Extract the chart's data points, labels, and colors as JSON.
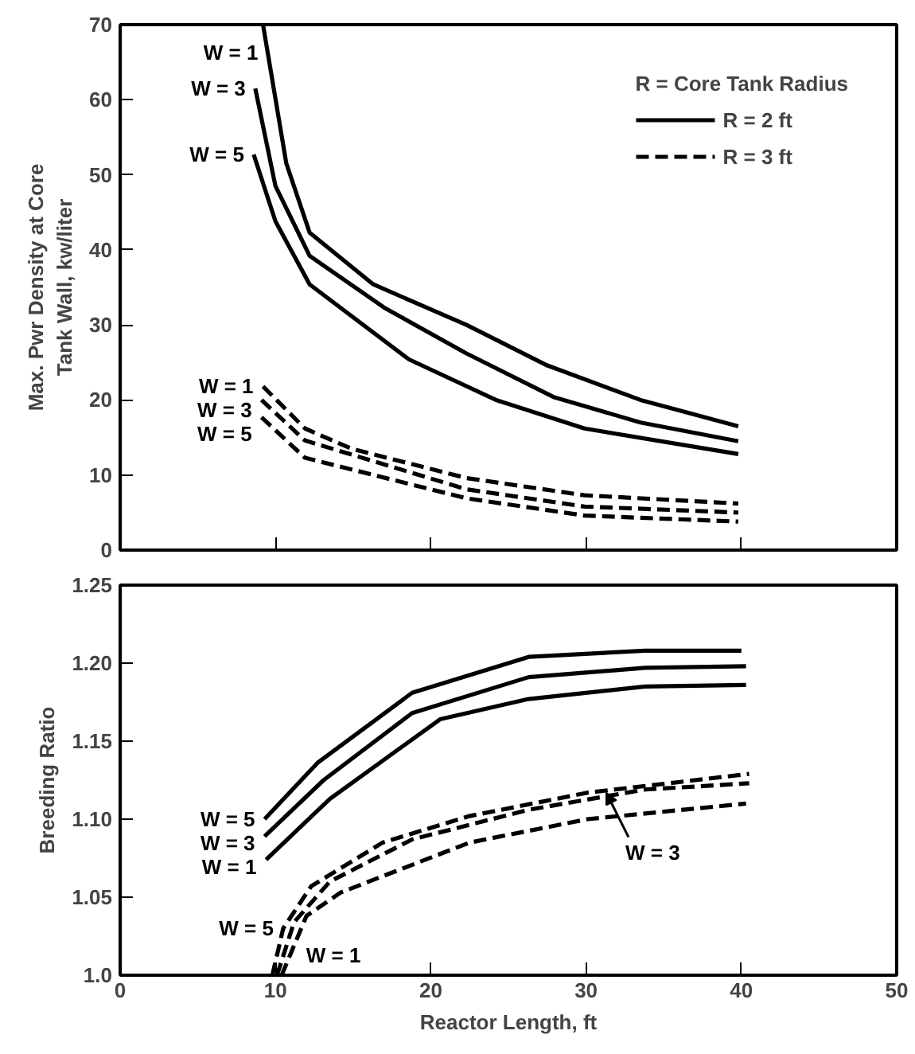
{
  "chart_data": [
    {
      "type": "line",
      "ylabel": "Max. Pwr Density at Core\nTank Wall, kw/liter",
      "legend_title": "R = Core Tank Radius",
      "legend": "top right",
      "xlim": [
        0,
        50
      ],
      "xticks": [
        0,
        10,
        20,
        30,
        40,
        50
      ],
      "ylim": [
        0,
        70
      ],
      "yticks": [
        0,
        10,
        20,
        30,
        40,
        50,
        60,
        70
      ],
      "tick_labels": "y",
      "series": [
        {
          "name": "R = 2 ft",
          "color": "#000000",
          "line_style": "solid",
          "x": [
            9.2,
            10.7,
            12.2,
            16.3,
            22.3,
            27.5,
            33.5,
            39.8
          ],
          "values": [
            70,
            51.5,
            42.3,
            35.4,
            30,
            24.6,
            20,
            16.5
          ]
        },
        {
          "color": "#000000",
          "line_style": "solid",
          "x": [
            8.7,
            10,
            12.2,
            17,
            22.3,
            27.9,
            33.5,
            39.8
          ],
          "values": [
            61.5,
            48.5,
            39.2,
            32.3,
            26.2,
            20.4,
            17,
            14.5
          ]
        },
        {
          "color": "#000000",
          "line_style": "solid",
          "x": [
            8.6,
            10,
            12.2,
            18.6,
            24.2,
            29.9,
            39.8
          ],
          "values": [
            52.7,
            43.8,
            35.4,
            25.4,
            20,
            16.2,
            12.8
          ]
        },
        {
          "name": "R = 3 ft",
          "color": "#000000",
          "line_style": "dashed",
          "x": [
            9.2,
            11.9,
            14.9,
            22.3,
            29.9,
            39.8
          ],
          "values": [
            21.8,
            16.2,
            13.5,
            9.6,
            7.3,
            6.2
          ]
        },
        {
          "color": "#000000",
          "line_style": "dashed",
          "x": [
            9.1,
            11.9,
            22.3,
            29.9,
            39.8
          ],
          "values": [
            20,
            14.6,
            8.1,
            5.8,
            5
          ]
        },
        {
          "color": "#000000",
          "line_style": "dashed",
          "x": [
            9.1,
            11.9,
            22.3,
            29.9,
            39.8
          ],
          "values": [
            17.7,
            12.3,
            6.9,
            4.6,
            3.8
          ]
        }
      ],
      "annotations": [
        {
          "text": "W = 1",
          "x": 9.5,
          "y": 66.3
        },
        {
          "text": "W = 3",
          "x": 8.7,
          "y": 61.5
        },
        {
          "text": "W = 5",
          "x": 8.6,
          "y": 52.7
        },
        {
          "text": "W = 1",
          "x": 9.2,
          "y": 21.8
        },
        {
          "text": "W = 3",
          "x": 9.1,
          "y": 20
        },
        {
          "text": "W = 5",
          "x": 9.1,
          "y": 17.7
        }
      ]
    },
    {
      "type": "line",
      "xlabel": "Reactor Length, ft",
      "ylabel": "Breeding Ratio",
      "xlim": [
        0,
        50
      ],
      "xticks": [
        0,
        10,
        20,
        30,
        40,
        50
      ],
      "ylim": [
        1.0,
        1.25
      ],
      "yticks": [
        {
          "value": 1.0,
          "label": "1.0"
        },
        {
          "value": 1.05,
          "label": "1.05"
        },
        {
          "value": 1.1,
          "label": "1.10"
        },
        {
          "value": 1.15,
          "label": "1.15"
        },
        {
          "value": 1.2,
          "label": "1.20"
        },
        {
          "value": 1.25,
          "label": "1.25"
        }
      ],
      "series": [
        {
          "color": "#000000",
          "line_style": "solid",
          "x": [
            9.3,
            12.7,
            18.8,
            26.3,
            33.8,
            40
          ],
          "values": [
            1.1,
            1.136,
            1.181,
            1.204,
            1.208,
            1.208
          ]
        },
        {
          "color": "#000000",
          "line_style": "solid",
          "x": [
            9.3,
            13.1,
            18.8,
            26.3,
            33.8,
            40.3
          ],
          "values": [
            1.089,
            1.125,
            1.168,
            1.191,
            1.197,
            1.198
          ]
        },
        {
          "color": "#000000",
          "line_style": "solid",
          "x": [
            9.4,
            13.5,
            20.6,
            26.3,
            33.8,
            40.3
          ],
          "values": [
            1.074,
            1.113,
            1.164,
            1.177,
            1.185,
            1.186
          ]
        },
        {
          "color": "#000000",
          "line_style": "dashed",
          "x": [
            9.8,
            10.5,
            12.3,
            16.9,
            22.5,
            30.1,
            40.5
          ],
          "values": [
            1.0,
            1.03,
            1.057,
            1.085,
            1.102,
            1.117,
            1.129
          ]
        },
        {
          "color": "#000000",
          "line_style": "dashed",
          "x": [
            10.1,
            11.2,
            13.5,
            18.8,
            26.3,
            33.8,
            40.5
          ],
          "values": [
            1.0,
            1.034,
            1.06,
            1.087,
            1.106,
            1.119,
            1.123
          ]
        },
        {
          "color": "#000000",
          "line_style": "dashed",
          "x": [
            10.4,
            12,
            14.2,
            22.5,
            30.1,
            40.3
          ],
          "values": [
            1.0,
            1.038,
            1.053,
            1.085,
            1.1,
            1.11
          ]
        }
      ],
      "annotations": [
        {
          "text": "W = 5",
          "x": 9.3,
          "y": 1.1
        },
        {
          "text": "W = 3",
          "x": 9.3,
          "y": 1.089
        },
        {
          "text": "W = 1",
          "x": 9.4,
          "y": 1.074
        },
        {
          "text": "W = 5",
          "x": 10.5,
          "y": 1.03
        },
        {
          "text": "W = 1",
          "x": 10.95,
          "y": 1.013
        },
        {
          "text": "W = 3",
          "x": 31.3,
          "y": 1.117
        }
      ]
    }
  ]
}
